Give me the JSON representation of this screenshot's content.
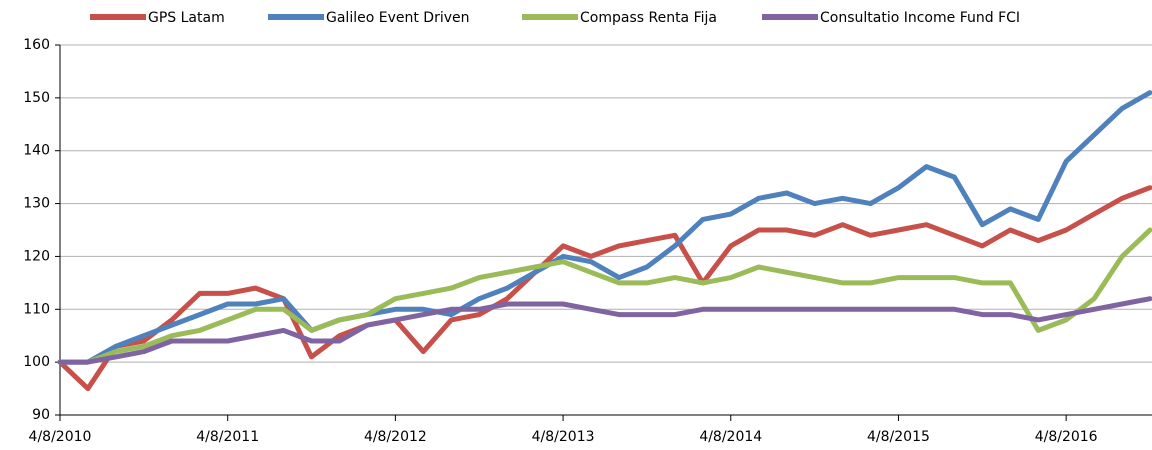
{
  "chart_data": {
    "type": "line",
    "categories": [
      "4/8/2010",
      null,
      null,
      null,
      null,
      null,
      "4/8/2011",
      null,
      null,
      null,
      null,
      null,
      "4/8/2012",
      null,
      null,
      null,
      null,
      null,
      "4/8/2013",
      null,
      null,
      null,
      null,
      null,
      "4/8/2014",
      null,
      null,
      null,
      null,
      null,
      "4/8/2015",
      null,
      null,
      null,
      null,
      null,
      "4/8/2016",
      null,
      null,
      null
    ],
    "series": [
      {
        "name": "GPS Latam",
        "color": "#c8504a",
        "values": [
          100,
          95,
          103,
          104,
          108,
          113,
          113,
          114,
          112,
          101,
          105,
          107,
          108,
          102,
          108,
          109,
          112,
          117,
          122,
          120,
          122,
          123,
          124,
          115,
          122,
          125,
          125,
          124,
          126,
          124,
          125,
          126,
          124,
          122,
          125,
          123,
          125,
          128,
          131,
          133
        ]
      },
      {
        "name": "Galileo Event Driven",
        "color": "#4f81bd",
        "values": [
          100,
          100,
          103,
          105,
          107,
          109,
          111,
          111,
          112,
          106,
          108,
          109,
          110,
          110,
          109,
          112,
          114,
          117,
          120,
          119,
          116,
          118,
          122,
          127,
          128,
          131,
          132,
          130,
          131,
          130,
          133,
          137,
          135,
          126,
          129,
          127,
          138,
          143,
          148,
          151
        ]
      },
      {
        "name": "Compass Renta Fija",
        "color": "#9bbb59",
        "values": [
          100,
          100,
          102,
          103,
          105,
          106,
          108,
          110,
          110,
          106,
          108,
          109,
          112,
          113,
          114,
          116,
          117,
          118,
          119,
          117,
          115,
          115,
          116,
          115,
          116,
          118,
          117,
          116,
          115,
          115,
          116,
          116,
          116,
          115,
          115,
          106,
          108,
          112,
          120,
          125
        ]
      },
      {
        "name": "Consultatio Income Fund FCI",
        "color": "#8064a2",
        "values": [
          100,
          100,
          101,
          102,
          104,
          104,
          104,
          105,
          106,
          104,
          104,
          107,
          108,
          109,
          110,
          110,
          111,
          111,
          111,
          110,
          109,
          109,
          109,
          110,
          110,
          110,
          110,
          110,
          110,
          110,
          110,
          110,
          110,
          109,
          109,
          108,
          109,
          110,
          111,
          112
        ]
      }
    ],
    "ylim": [
      90,
      160
    ],
    "yticks": [
      90,
      100,
      110,
      120,
      130,
      140,
      150,
      160
    ],
    "grid": true
  }
}
